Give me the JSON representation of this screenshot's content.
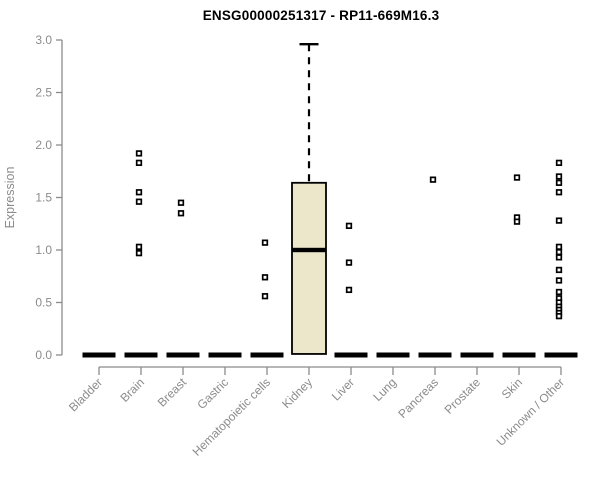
{
  "title": "ENSG00000251317 - RP11-669M16.3",
  "colors": {
    "background": "#ffffff",
    "box_fill": "#ece7cb",
    "box_stroke": "#000000",
    "axis_gray": "#8b8b8b",
    "title_color": "#000000"
  },
  "chart_data": {
    "type": "boxplot",
    "title": "ENSG00000251317 - RP11-669M16.3",
    "xlabel": "",
    "ylabel": "Expression",
    "ylim": [
      0.0,
      3.0
    ],
    "yticks": [
      0.0,
      0.5,
      1.0,
      1.5,
      2.0,
      2.5,
      3.0
    ],
    "grid": false,
    "legend": "none",
    "categories": [
      "Bladder",
      "Brain",
      "Breast",
      "Gastric",
      "Hematopoietic cells",
      "Kidney",
      "Liver",
      "Lung",
      "Pancreas",
      "Prostate",
      "Skin",
      "Unknown / Other"
    ],
    "series": [
      {
        "category": "Bladder",
        "q1": 0,
        "median": 0,
        "q3": 0,
        "whisker_low": 0,
        "whisker_high": 0,
        "outliers": []
      },
      {
        "category": "Brain",
        "q1": 0,
        "median": 0,
        "q3": 0,
        "whisker_low": 0,
        "whisker_high": 0,
        "outliers": [
          1.92,
          1.83,
          1.55,
          1.46,
          1.03,
          0.97
        ]
      },
      {
        "category": "Breast",
        "q1": 0,
        "median": 0,
        "q3": 0,
        "whisker_low": 0,
        "whisker_high": 0,
        "outliers": [
          1.45,
          1.35
        ]
      },
      {
        "category": "Gastric",
        "q1": 0,
        "median": 0,
        "q3": 0,
        "whisker_low": 0,
        "whisker_high": 0,
        "outliers": []
      },
      {
        "category": "Hematopoietic cells",
        "q1": 0,
        "median": 0,
        "q3": 0,
        "whisker_low": 0,
        "whisker_high": 0,
        "outliers": [
          1.07,
          0.74,
          0.56
        ]
      },
      {
        "category": "Kidney",
        "q1": 0.01,
        "median": 1.0,
        "q3": 1.64,
        "whisker_low": 0.01,
        "whisker_high": 2.96,
        "outliers": []
      },
      {
        "category": "Liver",
        "q1": 0,
        "median": 0,
        "q3": 0,
        "whisker_low": 0,
        "whisker_high": 0,
        "outliers": [
          1.23,
          0.88,
          0.62
        ]
      },
      {
        "category": "Lung",
        "q1": 0,
        "median": 0,
        "q3": 0,
        "whisker_low": 0,
        "whisker_high": 0,
        "outliers": []
      },
      {
        "category": "Pancreas",
        "q1": 0,
        "median": 0,
        "q3": 0,
        "whisker_low": 0,
        "whisker_high": 0,
        "outliers": [
          1.67
        ]
      },
      {
        "category": "Prostate",
        "q1": 0,
        "median": 0,
        "q3": 0,
        "whisker_low": 0,
        "whisker_high": 0,
        "outliers": []
      },
      {
        "category": "Skin",
        "q1": 0,
        "median": 0,
        "q3": 0,
        "whisker_low": 0,
        "whisker_high": 0,
        "outliers": [
          1.69,
          1.31,
          1.27
        ]
      },
      {
        "category": "Unknown / Other",
        "q1": 0,
        "median": 0,
        "q3": 0,
        "whisker_low": 0,
        "whisker_high": 0,
        "outliers": [
          1.83,
          1.7,
          1.64,
          1.55,
          1.28,
          1.03,
          0.98,
          0.93,
          0.81,
          0.71,
          0.6,
          0.54,
          0.5,
          0.46,
          0.43,
          0.4,
          0.37
        ]
      }
    ]
  }
}
